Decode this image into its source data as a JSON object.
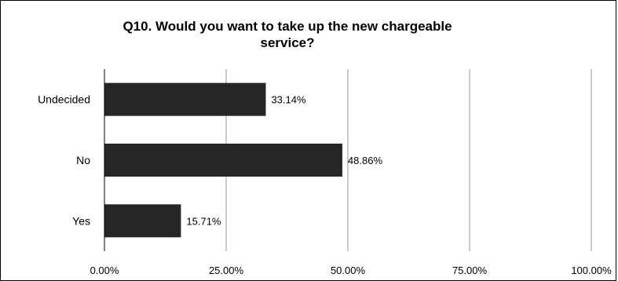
{
  "chart_data": {
    "type": "bar",
    "orientation": "horizontal",
    "title": "Q10. Would you want to take up the new chargeable service?",
    "categories": [
      "Undecided",
      "No",
      "Yes"
    ],
    "values": [
      33.14,
      48.86,
      15.71
    ],
    "data_labels": [
      "33.14%",
      "48.86%",
      "15.71%"
    ],
    "xlim": [
      0,
      100
    ],
    "xticks": [
      0,
      25,
      50,
      75,
      100
    ],
    "xtick_labels": [
      "0.00%",
      "25.00%",
      "50.00%",
      "75.00%",
      "100.00%"
    ],
    "xlabel": "",
    "ylabel": "",
    "grid": true,
    "legend": "none",
    "colors": {
      "bar": "#262626",
      "grid": "#9a9a9a",
      "axis": "#000000"
    }
  }
}
